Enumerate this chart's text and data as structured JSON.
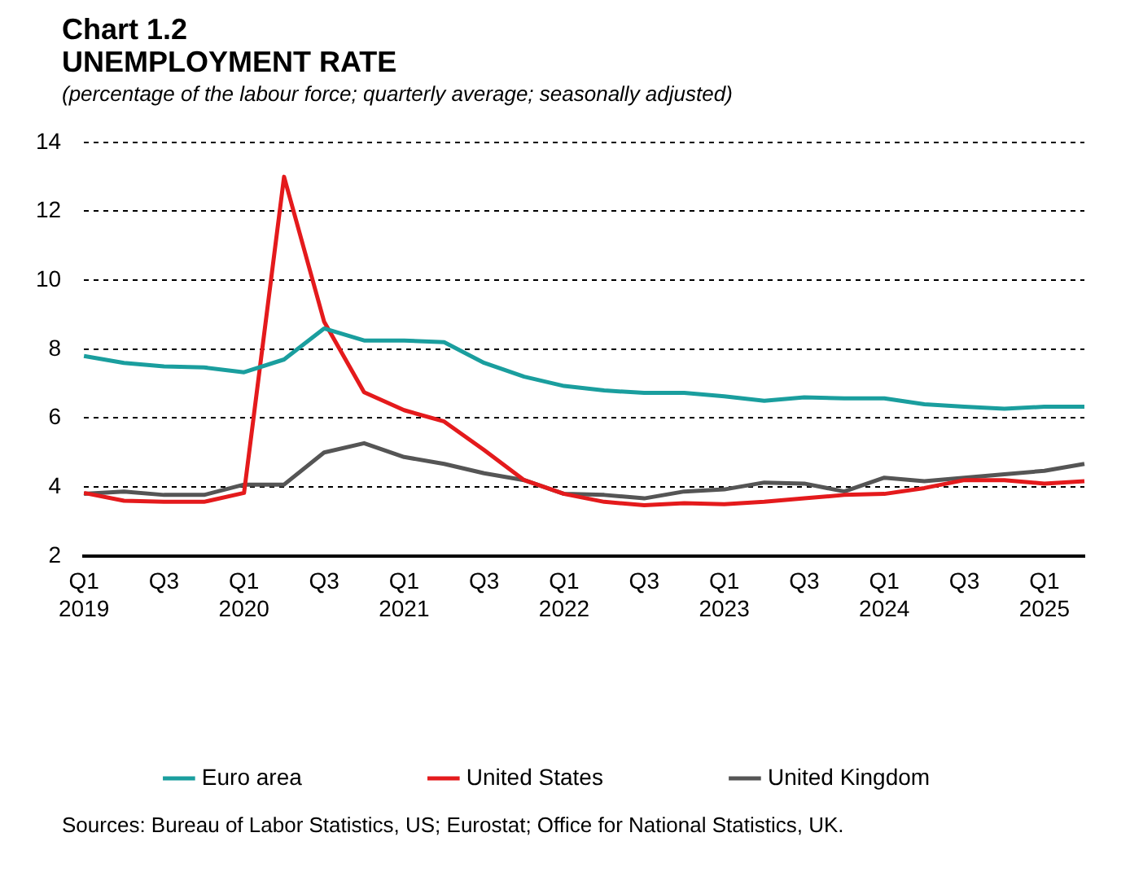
{
  "chart_data": {
    "type": "line",
    "title": "Chart 1.2",
    "subtitle": "UNEMPLOYMENT RATE",
    "annotations": [
      "(percentage of the labour force; quarterly average; seasonally adjusted)",
      "Sources: Bureau of Labor Statistics, US; Eurostat; Office for National Statistics, UK."
    ],
    "categories": [
      "Q1 2019",
      null,
      "Q3",
      null,
      "Q1 2020",
      null,
      "Q3",
      null,
      "Q1 2021",
      null,
      "Q3",
      null,
      "Q1 2022",
      null,
      "Q3",
      null,
      "Q1 2023",
      null,
      "Q3",
      null,
      "Q1 2024",
      null,
      "Q3",
      null,
      "Q1 2025",
      null
    ],
    "series": [
      {
        "name": "Euro area",
        "color": "#1a9e9e",
        "values": [
          7.8,
          7.6,
          7.5,
          7.47,
          7.33,
          7.7,
          8.6,
          8.25,
          8.25,
          8.2,
          7.6,
          7.2,
          6.93,
          6.8,
          6.73,
          6.73,
          6.63,
          6.5,
          6.6,
          6.57,
          6.57,
          6.4,
          6.33,
          6.27,
          6.33,
          6.33
        ]
      },
      {
        "name": "United States",
        "color": "#e41a1c",
        "values": [
          3.83,
          3.6,
          3.57,
          3.57,
          3.83,
          13.0,
          8.8,
          6.75,
          6.23,
          5.9,
          5.07,
          4.2,
          3.8,
          3.57,
          3.47,
          3.53,
          3.5,
          3.57,
          3.67,
          3.77,
          3.8,
          3.97,
          4.2,
          4.2,
          4.1,
          4.17
        ]
      },
      {
        "name": "United Kingdom",
        "color": "#555555",
        "values": [
          3.8,
          3.87,
          3.77,
          3.77,
          4.07,
          4.07,
          5.0,
          5.27,
          4.87,
          4.67,
          4.4,
          4.2,
          3.8,
          3.77,
          3.67,
          3.87,
          3.93,
          4.13,
          4.1,
          3.87,
          4.27,
          4.17,
          4.27,
          4.37,
          4.47,
          4.67
        ]
      }
    ],
    "ylim": [
      2,
      14
    ],
    "yticks": [
      2,
      4,
      6,
      8,
      10,
      12,
      14
    ],
    "grid": "y",
    "legend": "bottom",
    "marker": "none",
    "line_style": "solid"
  }
}
